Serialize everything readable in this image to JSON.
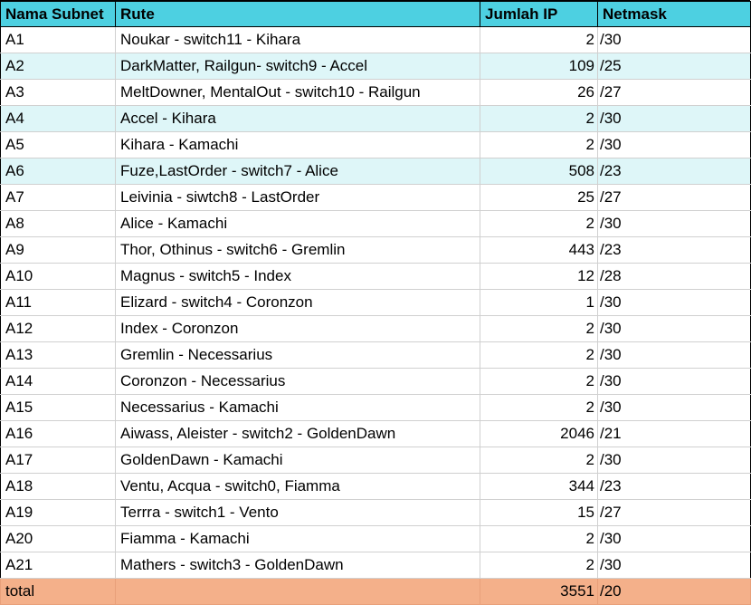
{
  "colors": {
    "header_bg": "#4dd0e1",
    "band_bg": "#def6f8",
    "total_bg": "#f4b08a"
  },
  "headers": [
    "Nama Subnet",
    "Rute",
    "Jumlah IP",
    "Netmask"
  ],
  "rows": [
    {
      "subnet": "A1",
      "rute": "Noukar - switch11 - Kihara",
      "jumlah_ip": "2",
      "netmask": "/30"
    },
    {
      "subnet": "A2",
      "rute": "DarkMatter, Railgun- switch9 - Accel",
      "jumlah_ip": "109",
      "netmask": "/25"
    },
    {
      "subnet": "A3",
      "rute": "MeltDowner, MentalOut - switch10 - Railgun",
      "jumlah_ip": "26",
      "netmask": "/27"
    },
    {
      "subnet": "A4",
      "rute": "Accel - Kihara",
      "jumlah_ip": "2",
      "netmask": "/30"
    },
    {
      "subnet": "A5",
      "rute": "Kihara - Kamachi",
      "jumlah_ip": "2",
      "netmask": "/30"
    },
    {
      "subnet": "A6",
      "rute": "Fuze,LastOrder - switch7 - Alice",
      "jumlah_ip": "508",
      "netmask": "/23"
    },
    {
      "subnet": "A7",
      "rute": "Leivinia - siwtch8 - LastOrder",
      "jumlah_ip": "25",
      "netmask": "/27"
    },
    {
      "subnet": "A8",
      "rute": "Alice - Kamachi",
      "jumlah_ip": "2",
      "netmask": "/30"
    },
    {
      "subnet": "A9",
      "rute": "Thor, Othinus - switch6 - Gremlin",
      "jumlah_ip": "443",
      "netmask": "/23"
    },
    {
      "subnet": "A10",
      "rute": "Magnus - switch5 - Index",
      "jumlah_ip": "12",
      "netmask": "/28"
    },
    {
      "subnet": "A11",
      "rute": "Elizard - switch4 - Coronzon",
      "jumlah_ip": "1",
      "netmask": "/30"
    },
    {
      "subnet": "A12",
      "rute": "Index - Coronzon",
      "jumlah_ip": "2",
      "netmask": "/30"
    },
    {
      "subnet": "A13",
      "rute": "Gremlin - Necessarius",
      "jumlah_ip": "2",
      "netmask": "/30"
    },
    {
      "subnet": "A14",
      "rute": "Coronzon - Necessarius",
      "jumlah_ip": "2",
      "netmask": "/30"
    },
    {
      "subnet": "A15",
      "rute": "Necessarius - Kamachi",
      "jumlah_ip": "2",
      "netmask": "/30"
    },
    {
      "subnet": "A16",
      "rute": "Aiwass, Aleister - switch2 - GoldenDawn",
      "jumlah_ip": "2046",
      "netmask": "/21"
    },
    {
      "subnet": "A17",
      "rute": "GoldenDawn - Kamachi",
      "jumlah_ip": "2",
      "netmask": "/30"
    },
    {
      "subnet": "A18",
      "rute": "Ventu, Acqua - switch0, Fiamma",
      "jumlah_ip": "344",
      "netmask": "/23"
    },
    {
      "subnet": "A19",
      "rute": "Terrra - switch1 - Vento",
      "jumlah_ip": "15",
      "netmask": "/27"
    },
    {
      "subnet": "A20",
      "rute": "Fiamma - Kamachi",
      "jumlah_ip": "2",
      "netmask": "/30"
    },
    {
      "subnet": "A21",
      "rute": "Mathers - switch3 - GoldenDawn",
      "jumlah_ip": "2",
      "netmask": "/30"
    }
  ],
  "banded_rows": [
    1,
    3,
    5
  ],
  "total": {
    "label": "total",
    "rute": "",
    "jumlah_ip": "3551",
    "netmask": "/20"
  }
}
